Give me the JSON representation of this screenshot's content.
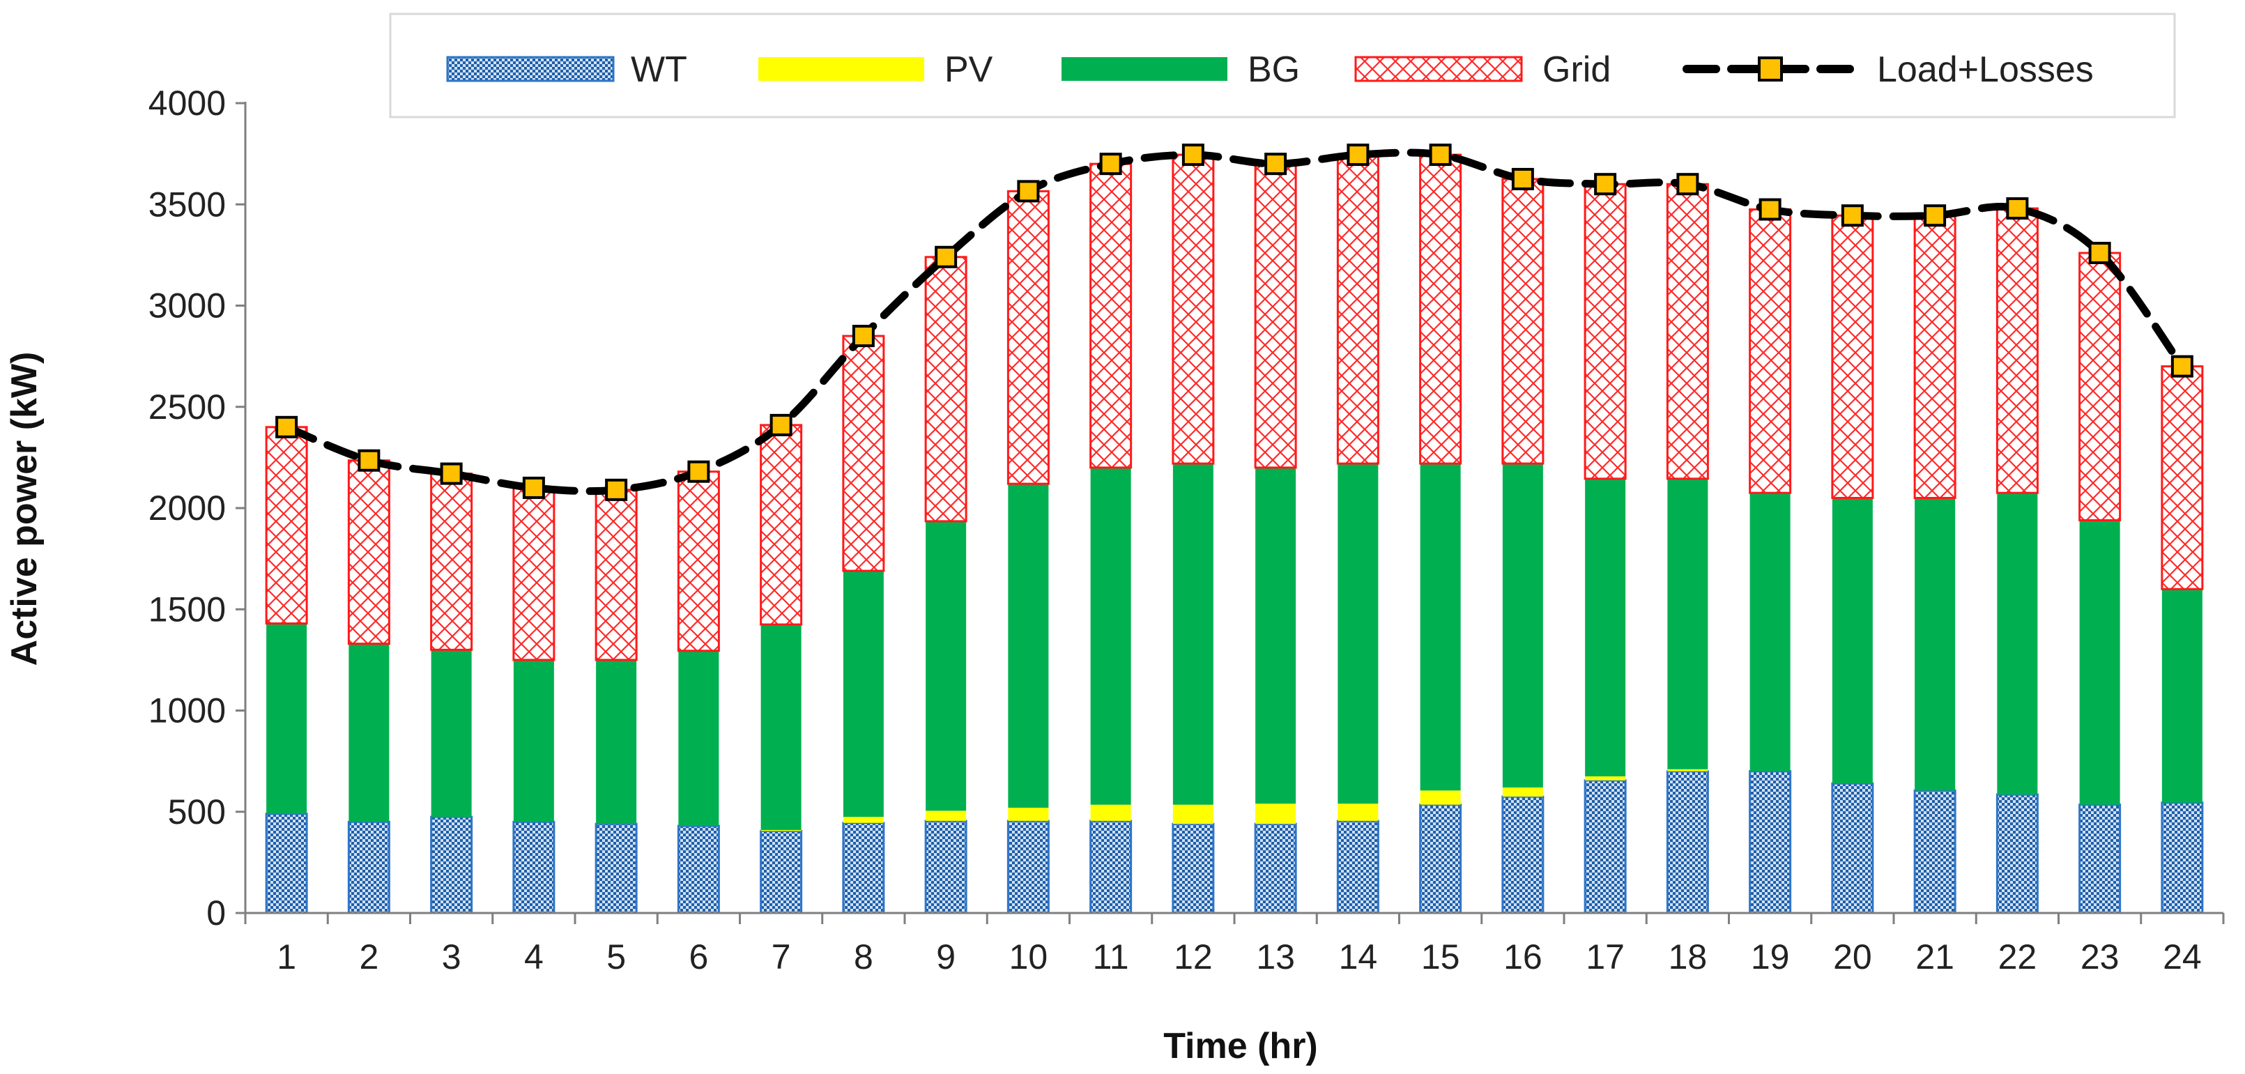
{
  "chart_data": {
    "type": "bar",
    "stacked": true,
    "title": "",
    "xlabel": "Time (hr)",
    "ylabel": "Active power (kW)",
    "ylim": [
      0,
      4000
    ],
    "yticks": [
      0,
      500,
      1000,
      1500,
      2000,
      2500,
      3000,
      3500,
      4000
    ],
    "categories": [
      "1",
      "2",
      "3",
      "4",
      "5",
      "6",
      "7",
      "8",
      "9",
      "10",
      "11",
      "12",
      "13",
      "14",
      "15",
      "16",
      "17",
      "18",
      "19",
      "20",
      "21",
      "22",
      "23",
      "24"
    ],
    "series": [
      {
        "name": "WT",
        "kind": "bar",
        "color": "#2e75c8",
        "pattern": "checker",
        "values": [
          490,
          450,
          475,
          450,
          440,
          430,
          405,
          445,
          455,
          455,
          455,
          440,
          440,
          455,
          535,
          575,
          655,
          700,
          700,
          640,
          605,
          585,
          535,
          545
        ]
      },
      {
        "name": "PV",
        "kind": "bar",
        "color": "#ffff00",
        "pattern": "solid",
        "values": [
          0,
          0,
          0,
          0,
          0,
          0,
          5,
          30,
          50,
          65,
          80,
          95,
          100,
          85,
          70,
          45,
          20,
          10,
          0,
          0,
          0,
          0,
          0,
          0
        ]
      },
      {
        "name": "BG",
        "kind": "bar",
        "color": "#00b050",
        "pattern": "solid",
        "values": [
          940,
          880,
          825,
          800,
          810,
          865,
          1015,
          1215,
          1430,
          1600,
          1665,
          1685,
          1660,
          1680,
          1615,
          1600,
          1470,
          1435,
          1375,
          1410,
          1445,
          1490,
          1405,
          1055
        ]
      },
      {
        "name": "Grid",
        "kind": "bar",
        "color": "#ff1a1a",
        "pattern": "crosshatch",
        "values": [
          970,
          905,
          870,
          850,
          840,
          885,
          985,
          1160,
          1305,
          1445,
          1500,
          1525,
          1500,
          1525,
          1525,
          1405,
          1455,
          1455,
          1400,
          1395,
          1395,
          1405,
          1320,
          1100
        ]
      },
      {
        "name": "Load+Losses",
        "kind": "line",
        "color": "#000000",
        "marker_color": "#ffc000",
        "dash": "dashed",
        "values": [
          2400,
          2235,
          2170,
          2100,
          2090,
          2180,
          2410,
          2850,
          3240,
          3565,
          3700,
          3745,
          3700,
          3745,
          3745,
          3625,
          3600,
          3600,
          3475,
          3445,
          3445,
          3480,
          3260,
          2700
        ]
      }
    ],
    "legend": "top-right"
  }
}
